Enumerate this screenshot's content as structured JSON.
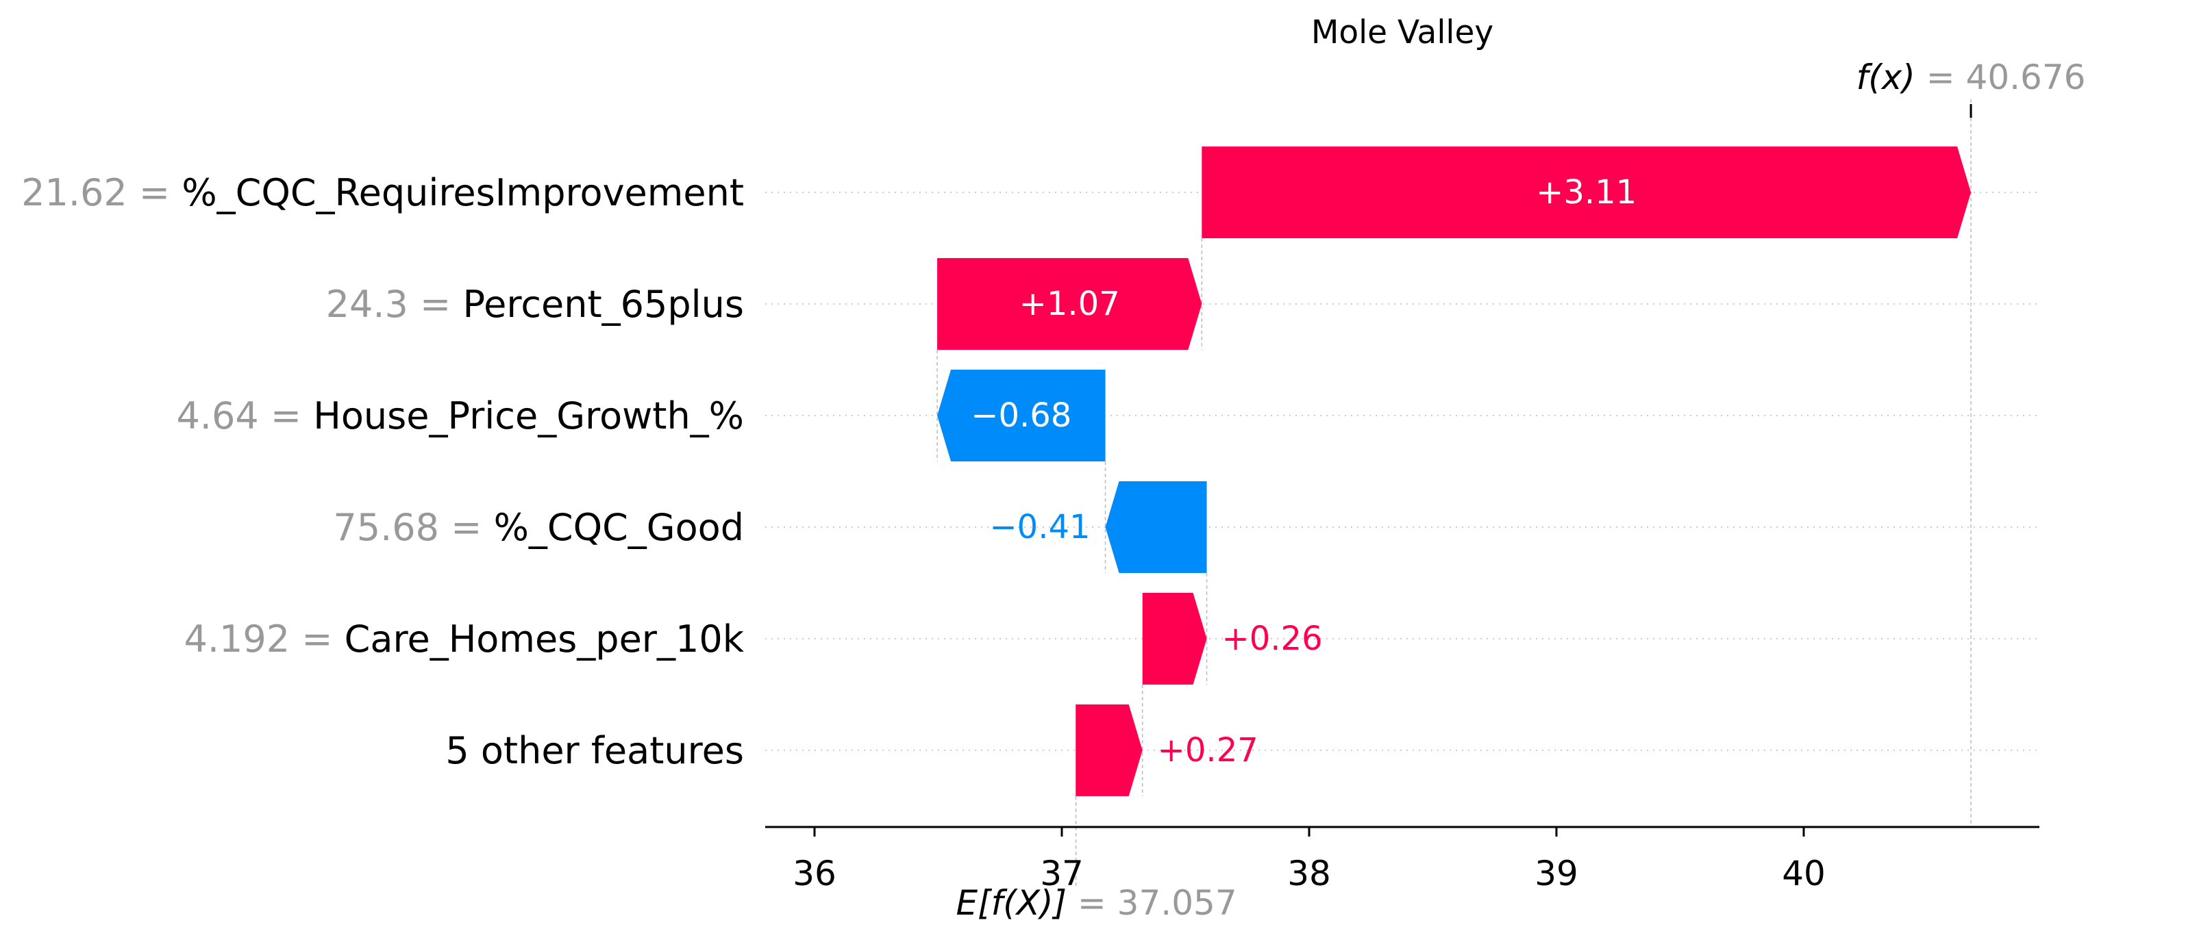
{
  "chart_data": {
    "type": "waterfall",
    "title": "Mole Valley",
    "base_value": 37.057,
    "base_label_math": "E[f(X)]",
    "base_label_value": "= 37.057",
    "output_value": 40.676,
    "output_label_math": "f(x)",
    "output_label_value": "= 40.676",
    "xlim": [
      35.8,
      40.95
    ],
    "xticks": [
      36,
      37,
      38,
      39,
      40
    ],
    "grid": "horizontal dotted",
    "features": [
      {
        "value_text": "21.62",
        "name": "%_CQC_RequiresImprovement",
        "contribution": 3.11,
        "label": "+3.11"
      },
      {
        "value_text": "24.3",
        "name": "Percent_65plus",
        "contribution": 1.07,
        "label": "+1.07"
      },
      {
        "value_text": "4.64",
        "name": "House_Price_Growth_%",
        "contribution": -0.68,
        "label": "−0.68"
      },
      {
        "value_text": "75.68",
        "name": "%_CQC_Good",
        "contribution": -0.41,
        "label": "−0.41"
      },
      {
        "value_text": "4.192",
        "name": "Care_Homes_per_10k",
        "contribution": 0.26,
        "label": "+0.26"
      },
      {
        "value_text": "",
        "name": "5 other features",
        "contribution": 0.27,
        "label": "+0.27"
      }
    ],
    "colors": {
      "positive": "#ff0051",
      "negative": "#008bfb",
      "label_inside": "#ffffff",
      "value_gray": "#999999"
    }
  }
}
